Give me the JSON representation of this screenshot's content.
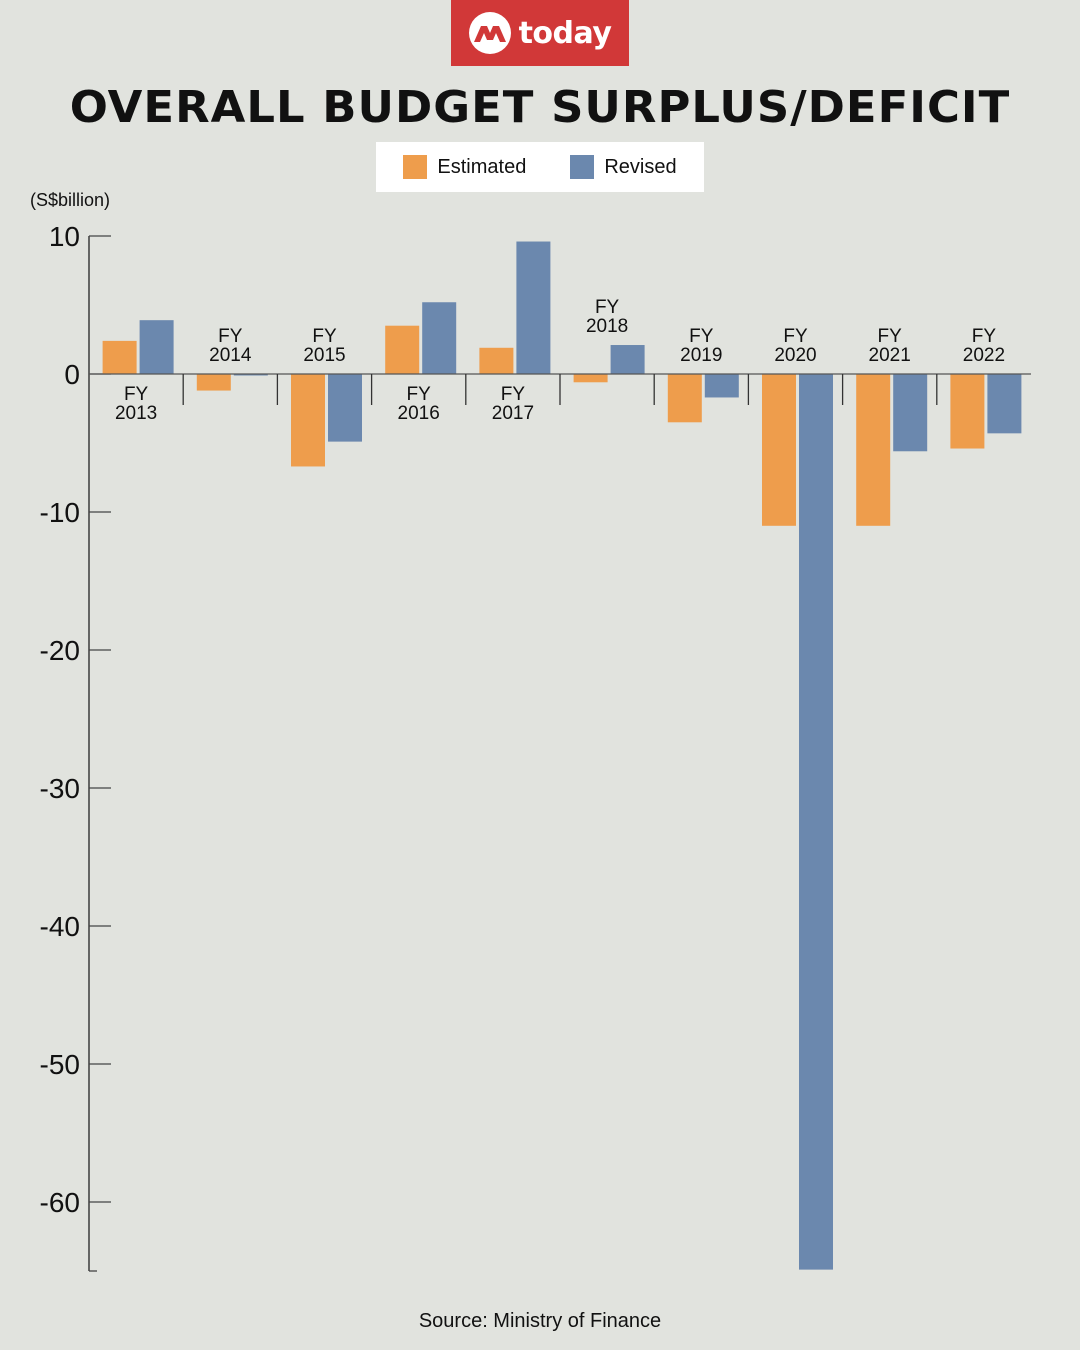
{
  "brand": {
    "name": "today",
    "color": "#d13838"
  },
  "legend": [
    {
      "label": "Estimated",
      "color": "#ee9d4c"
    },
    {
      "label": "Revised",
      "color": "#6b88ae"
    }
  ],
  "source": "Source: Ministry of Finance",
  "chart_data": {
    "type": "bar",
    "title": "OVERALL BUDGET SURPLUS/DEFICIT",
    "ylabel": "(S$billion)",
    "xlabel": "",
    "ylim": [
      -65,
      10
    ],
    "yticks": [
      10,
      0,
      -10,
      -20,
      -30,
      -40,
      -50,
      -60
    ],
    "grid": false,
    "legend_position": "top-center",
    "categories": [
      "FY 2013",
      "FY 2014",
      "FY 2015",
      "FY 2016",
      "FY 2017",
      "FY 2018",
      "FY 2019",
      "FY 2020",
      "FY 2021",
      "FY 2022"
    ],
    "series": [
      {
        "name": "Estimated",
        "color": "#ee9d4c",
        "values": [
          2.4,
          -1.2,
          -6.7,
          3.5,
          1.9,
          -0.6,
          -3.5,
          -11.0,
          -11.0,
          -5.4
        ]
      },
      {
        "name": "Revised",
        "color": "#6b88ae",
        "values": [
          3.9,
          -0.1,
          -4.9,
          5.2,
          9.6,
          2.1,
          -1.7,
          -64.9,
          -5.6,
          -4.3
        ]
      }
    ]
  }
}
